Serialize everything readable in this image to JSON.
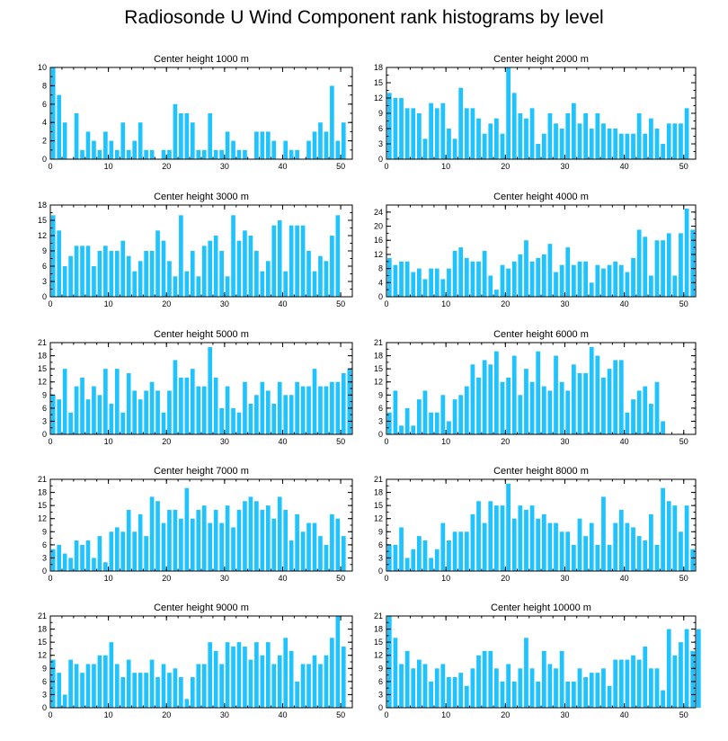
{
  "title": "Radiosonde U Wind Component rank histograms by level",
  "colors": {
    "bar": "#1ec3ff",
    "axis": "#000000"
  },
  "chart_data": [
    {
      "type": "bar",
      "title": "Center height 1000 m",
      "xlim": [
        0,
        52
      ],
      "ylim": [
        0,
        10
      ],
      "xticks": [
        0,
        10,
        20,
        30,
        40,
        50
      ],
      "yticks": [
        0,
        2,
        4,
        6,
        8,
        10
      ],
      "values": [
        10,
        7,
        4,
        0,
        5,
        1,
        3,
        2,
        1,
        3,
        2,
        1,
        4,
        1,
        2,
        4,
        1,
        1,
        0,
        1,
        1,
        6,
        5,
        5,
        4,
        1,
        1,
        5,
        1,
        1,
        3,
        2,
        1,
        1,
        0,
        3,
        3,
        3,
        2,
        0,
        2,
        1,
        1,
        0,
        2,
        3,
        4,
        3,
        8,
        2,
        4
      ]
    },
    {
      "type": "bar",
      "title": "Center height 2000 m",
      "xlim": [
        0,
        52
      ],
      "ylim": [
        0,
        18
      ],
      "xticks": [
        0,
        10,
        20,
        30,
        40,
        50
      ],
      "yticks": [
        0,
        3,
        6,
        9,
        12,
        15,
        18
      ],
      "values": [
        13,
        12,
        12,
        10,
        10,
        9,
        4,
        11,
        10,
        11,
        6,
        4,
        14,
        10,
        10,
        8,
        5,
        7,
        8,
        5,
        18,
        13,
        9,
        8,
        10,
        3,
        5,
        9,
        7,
        6,
        9,
        11,
        7,
        9,
        6,
        9,
        7,
        6,
        6,
        5,
        5,
        5,
        9,
        5,
        8,
        6,
        3,
        7,
        7,
        7,
        10
      ]
    },
    {
      "type": "bar",
      "title": "Center height 3000 m",
      "xlim": [
        0,
        52
      ],
      "ylim": [
        0,
        18
      ],
      "xticks": [
        0,
        10,
        20,
        30,
        40,
        50
      ],
      "yticks": [
        0,
        3,
        6,
        9,
        12,
        15,
        18
      ],
      "values": [
        16,
        13,
        6,
        8,
        10,
        10,
        10,
        6,
        9,
        10,
        9,
        9,
        11,
        8,
        5,
        7,
        9,
        9,
        13,
        11,
        7,
        4,
        16,
        5,
        9,
        4,
        10,
        11,
        12,
        9,
        4,
        16,
        11,
        13,
        12,
        9,
        5,
        7,
        14,
        15,
        5,
        14,
        14,
        14,
        9,
        5,
        8,
        7,
        12,
        16
      ]
    },
    {
      "type": "bar",
      "title": "Center height 4000 m",
      "xlim": [
        0,
        52
      ],
      "ylim": [
        0,
        26
      ],
      "xticks": [
        0,
        10,
        20,
        30,
        40,
        50
      ],
      "yticks": [
        0,
        4,
        8,
        12,
        16,
        20,
        24
      ],
      "values": [
        11,
        9,
        10,
        10,
        7,
        8,
        5,
        8,
        8,
        5,
        8,
        13,
        14,
        11,
        10,
        10,
        13,
        6,
        2,
        9,
        8,
        10,
        12,
        16,
        10,
        11,
        12,
        15,
        7,
        9,
        14,
        9,
        10,
        10,
        4,
        9,
        8,
        9,
        10,
        9,
        7,
        11,
        19,
        17,
        6,
        16,
        16,
        18,
        6,
        18,
        25,
        19
      ]
    },
    {
      "type": "bar",
      "title": "Center height 5000 m",
      "xlim": [
        0,
        52
      ],
      "ylim": [
        0,
        21
      ],
      "xticks": [
        0,
        10,
        20,
        30,
        40,
        50
      ],
      "yticks": [
        0,
        3,
        6,
        9,
        12,
        15,
        18,
        21
      ],
      "values": [
        9,
        8,
        15,
        5,
        11,
        13,
        8,
        11,
        9,
        15,
        7,
        15,
        5,
        14,
        10,
        8,
        10,
        12,
        10,
        5,
        10,
        17,
        13,
        13,
        15,
        11,
        11,
        20,
        13,
        6,
        11,
        6,
        5,
        12,
        7,
        9,
        12,
        10,
        7,
        12,
        9,
        9,
        12,
        11,
        11,
        15,
        11,
        11,
        12,
        12,
        14,
        15
      ]
    },
    {
      "type": "bar",
      "title": "Center height 6000 m",
      "xlim": [
        0,
        52
      ],
      "ylim": [
        0,
        21
      ],
      "xticks": [
        0,
        10,
        20,
        30,
        40,
        50
      ],
      "yticks": [
        0,
        3,
        6,
        9,
        12,
        15,
        18,
        21
      ],
      "values": [
        5,
        10,
        2,
        6,
        2,
        8,
        10,
        5,
        5,
        9,
        3,
        8,
        9,
        11,
        16,
        13,
        17,
        16,
        19,
        12,
        13,
        18,
        9,
        15,
        12,
        19,
        11,
        10,
        18,
        12,
        10,
        16,
        14,
        14,
        20,
        18,
        13,
        15,
        17,
        17,
        5,
        8,
        10,
        11,
        7,
        12,
        3
      ]
    },
    {
      "type": "bar",
      "title": "Center height 7000 m",
      "xlim": [
        0,
        52
      ],
      "ylim": [
        0,
        21
      ],
      "xticks": [
        0,
        10,
        20,
        30,
        40,
        50
      ],
      "yticks": [
        0,
        3,
        6,
        9,
        12,
        15,
        18,
        21
      ],
      "values": [
        5,
        6,
        4,
        3,
        7,
        6,
        7,
        3,
        8,
        2,
        9,
        10,
        9,
        14,
        9,
        13,
        8,
        17,
        16,
        11,
        14,
        14,
        12,
        19,
        12,
        14,
        15,
        11,
        14,
        11,
        15,
        10,
        14,
        16,
        17,
        16,
        14,
        15,
        12,
        17,
        14,
        7,
        13,
        9,
        11,
        11,
        8,
        6,
        13,
        12,
        8
      ]
    },
    {
      "type": "bar",
      "title": "Center height 8000 m",
      "xlim": [
        0,
        52
      ],
      "ylim": [
        0,
        21
      ],
      "xticks": [
        0,
        10,
        20,
        30,
        40,
        50
      ],
      "yticks": [
        0,
        3,
        6,
        9,
        12,
        15,
        18,
        21
      ],
      "values": [
        6,
        6,
        10,
        3,
        5,
        8,
        7,
        3,
        5,
        11,
        7,
        9,
        9,
        9,
        13,
        16,
        11,
        16,
        15,
        15,
        20,
        12,
        15,
        14,
        15,
        12,
        13,
        11,
        11,
        9,
        9,
        6,
        12,
        8,
        11,
        6,
        17,
        6,
        11,
        14,
        11,
        10,
        8,
        7,
        13,
        6,
        19,
        16,
        15,
        9,
        15,
        5
      ]
    },
    {
      "type": "bar",
      "title": "Center height 9000 m",
      "xlim": [
        0,
        52
      ],
      "ylim": [
        0,
        21
      ],
      "xticks": [
        0,
        10,
        20,
        30,
        40,
        50
      ],
      "yticks": [
        0,
        3,
        6,
        9,
        12,
        15,
        18,
        21
      ],
      "values": [
        11,
        8,
        3,
        11,
        10,
        8,
        10,
        10,
        12,
        12,
        15,
        10,
        7,
        11,
        8,
        8,
        8,
        11,
        7,
        10,
        8,
        9,
        7,
        2,
        7,
        10,
        10,
        15,
        13,
        10,
        15,
        14,
        15,
        14,
        11,
        15,
        12,
        15,
        10,
        12,
        16,
        13,
        6,
        10,
        10,
        12,
        10,
        12,
        16,
        21,
        14
      ]
    },
    {
      "type": "bar",
      "title": "Center height 10000 m",
      "xlim": [
        0,
        52
      ],
      "ylim": [
        0,
        21
      ],
      "xticks": [
        0,
        10,
        20,
        30,
        40,
        50
      ],
      "yticks": [
        0,
        3,
        6,
        9,
        12,
        15,
        18,
        21
      ],
      "values": [
        21,
        16,
        10,
        13,
        9,
        11,
        10,
        6,
        9,
        10,
        7,
        7,
        8,
        5,
        9,
        12,
        13,
        13,
        9,
        6,
        10,
        6,
        9,
        16,
        9,
        6,
        13,
        10,
        9,
        13,
        6,
        6,
        9,
        7,
        8,
        8,
        9,
        5,
        11,
        11,
        11,
        12,
        11,
        14,
        9,
        9,
        4,
        18,
        12,
        15,
        18,
        13,
        18
      ]
    }
  ]
}
